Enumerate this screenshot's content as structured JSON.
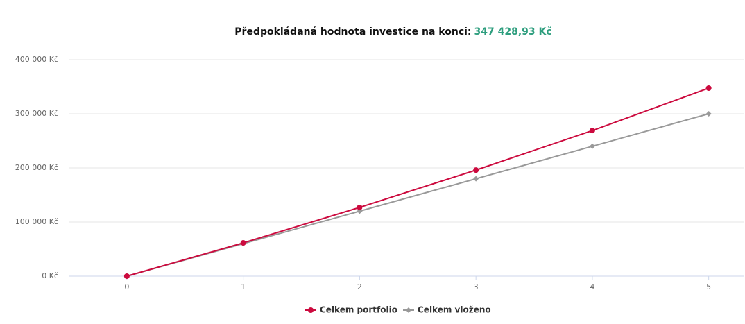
{
  "chart_data": {
    "type": "line",
    "title": "Předpokládaná hodnota investice na konci:",
    "title_value": "347 428,93 Kč",
    "x": [
      0,
      1,
      2,
      3,
      4,
      5
    ],
    "series": [
      {
        "name": "Celkem portfolio",
        "color": "#cc0a3e",
        "marker": "circle",
        "values": [
          0,
          61500,
          127000,
          196000,
          269000,
          347428.93
        ]
      },
      {
        "name": "Celkem vloženo",
        "color": "#999999",
        "marker": "diamond",
        "values": [
          0,
          60000,
          120000,
          180000,
          240000,
          300000
        ]
      }
    ],
    "xlim": [
      -0.5,
      5.3
    ],
    "xticks": [
      0,
      1,
      2,
      3,
      4,
      5
    ],
    "ylim": [
      0,
      400000
    ],
    "yticks": [
      {
        "value": 0,
        "label": "0 Kč"
      },
      {
        "value": 100000,
        "label": "100 000 Kč"
      },
      {
        "value": 200000,
        "label": "200 000 Kč"
      },
      {
        "value": 300000,
        "label": "300 000 Kč"
      },
      {
        "value": 400000,
        "label": "400 000 Kč"
      }
    ],
    "grid": true,
    "legend": "bottom"
  }
}
